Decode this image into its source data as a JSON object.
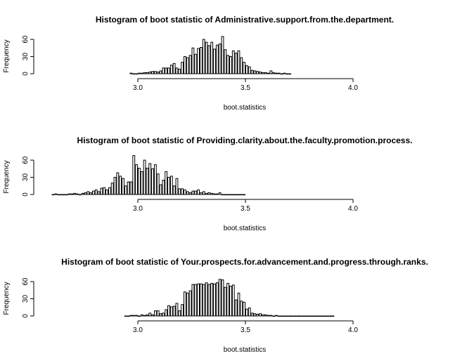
{
  "chart_data": [
    {
      "type": "bar",
      "title": "Histogram of boot statistic of  Administrative.support.from.the.department.",
      "xlabel": "boot.statistics",
      "ylabel": "Frequency",
      "xlim": [
        2.95,
        4.0
      ],
      "ylim": [
        0,
        65
      ],
      "x_ticks": [
        "3.0",
        "3.5",
        "4.0"
      ],
      "x_tick_values": [
        3.0,
        3.5,
        4.0
      ],
      "y_ticks": [
        "0",
        "30",
        "60"
      ],
      "y_tick_values": [
        0,
        30,
        60
      ],
      "bin_width": 0.0125,
      "bin_start": 2.9625,
      "counts": [
        1,
        0,
        0,
        1,
        1,
        2,
        2,
        3,
        4,
        4,
        3,
        5,
        10,
        10,
        10,
        15,
        18,
        10,
        8,
        20,
        30,
        28,
        32,
        45,
        34,
        44,
        46,
        60,
        55,
        49,
        55,
        43,
        50,
        52,
        65,
        42,
        32,
        30,
        40,
        36,
        40,
        28,
        20,
        14,
        12,
        6,
        5,
        4,
        3,
        2,
        2,
        1,
        5,
        2,
        1,
        1,
        0,
        1,
        0,
        0
      ],
      "grid": false,
      "legend": "none"
    },
    {
      "type": "bar",
      "title": "Histogram of boot statistic of  Providing.clarity.about.the.faculty.promotion.process.",
      "xlabel": "boot.statistics",
      "ylabel": "Frequency",
      "xlim": [
        2.6,
        3.5
      ],
      "ylim": [
        0,
        65
      ],
      "x_ticks": [
        "3.0",
        "3.5",
        "4.0"
      ],
      "x_tick_values": [
        3.0,
        3.5,
        4.0
      ],
      "y_ticks": [
        "0",
        "30",
        "60"
      ],
      "y_tick_values": [
        0,
        30,
        60
      ],
      "bin_width": 0.0125,
      "bin_start": 2.6,
      "counts": [
        0,
        1,
        0,
        0,
        0,
        0,
        1,
        1,
        2,
        1,
        0,
        2,
        3,
        5,
        3,
        6,
        8,
        5,
        11,
        12,
        8,
        12,
        20,
        30,
        38,
        32,
        28,
        15,
        22,
        22,
        68,
        52,
        46,
        40,
        60,
        46,
        54,
        45,
        52,
        36,
        17,
        25,
        40,
        30,
        32,
        15,
        28,
        10,
        10,
        8,
        5,
        3,
        6,
        6,
        8,
        3,
        5,
        2,
        3,
        2,
        1,
        1,
        3,
        0,
        0,
        0,
        0,
        0,
        0,
        0,
        0,
        0
      ],
      "grid": false,
      "legend": "none"
    },
    {
      "type": "bar",
      "title": "Histogram of boot statistic of  Your.prospects.for.advancement.and.progress.through.ranks.",
      "xlabel": "boot.statistics",
      "ylabel": "Frequency",
      "xlim": [
        2.95,
        3.9
      ],
      "ylim": [
        0,
        65
      ],
      "x_ticks": [
        "3.0",
        "3.5",
        "4.0"
      ],
      "x_tick_values": [
        3.0,
        3.5,
        4.0
      ],
      "y_ticks": [
        "0",
        "30",
        "60"
      ],
      "y_tick_values": [
        0,
        30,
        60
      ],
      "bin_width": 0.0125,
      "bin_start": 2.9375,
      "counts": [
        0,
        0,
        1,
        1,
        1,
        0,
        2,
        1,
        2,
        5,
        2,
        9,
        9,
        4,
        5,
        11,
        18,
        16,
        17,
        22,
        9,
        20,
        42,
        40,
        44,
        55,
        55,
        56,
        56,
        55,
        58,
        55,
        57,
        56,
        58,
        64,
        63,
        50,
        57,
        52,
        54,
        28,
        40,
        26,
        24,
        12,
        14,
        5,
        4,
        3,
        4,
        2,
        2,
        1,
        1,
        0,
        1,
        0,
        0,
        0,
        0,
        0,
        0,
        0,
        0,
        0,
        0,
        0,
        0,
        0,
        0,
        0,
        0,
        0,
        0,
        0,
        0,
        0,
        0,
        0,
        0,
        0,
        0,
        0,
        0,
        0,
        0,
        0,
        0,
        0,
        0,
        0,
        0,
        0,
        0,
        0,
        0,
        0,
        0,
        0,
        0,
        0,
        0,
        0,
        0,
        0,
        0,
        0,
        0,
        0,
        0,
        0,
        0,
        0,
        0
      ]
    }
  ]
}
